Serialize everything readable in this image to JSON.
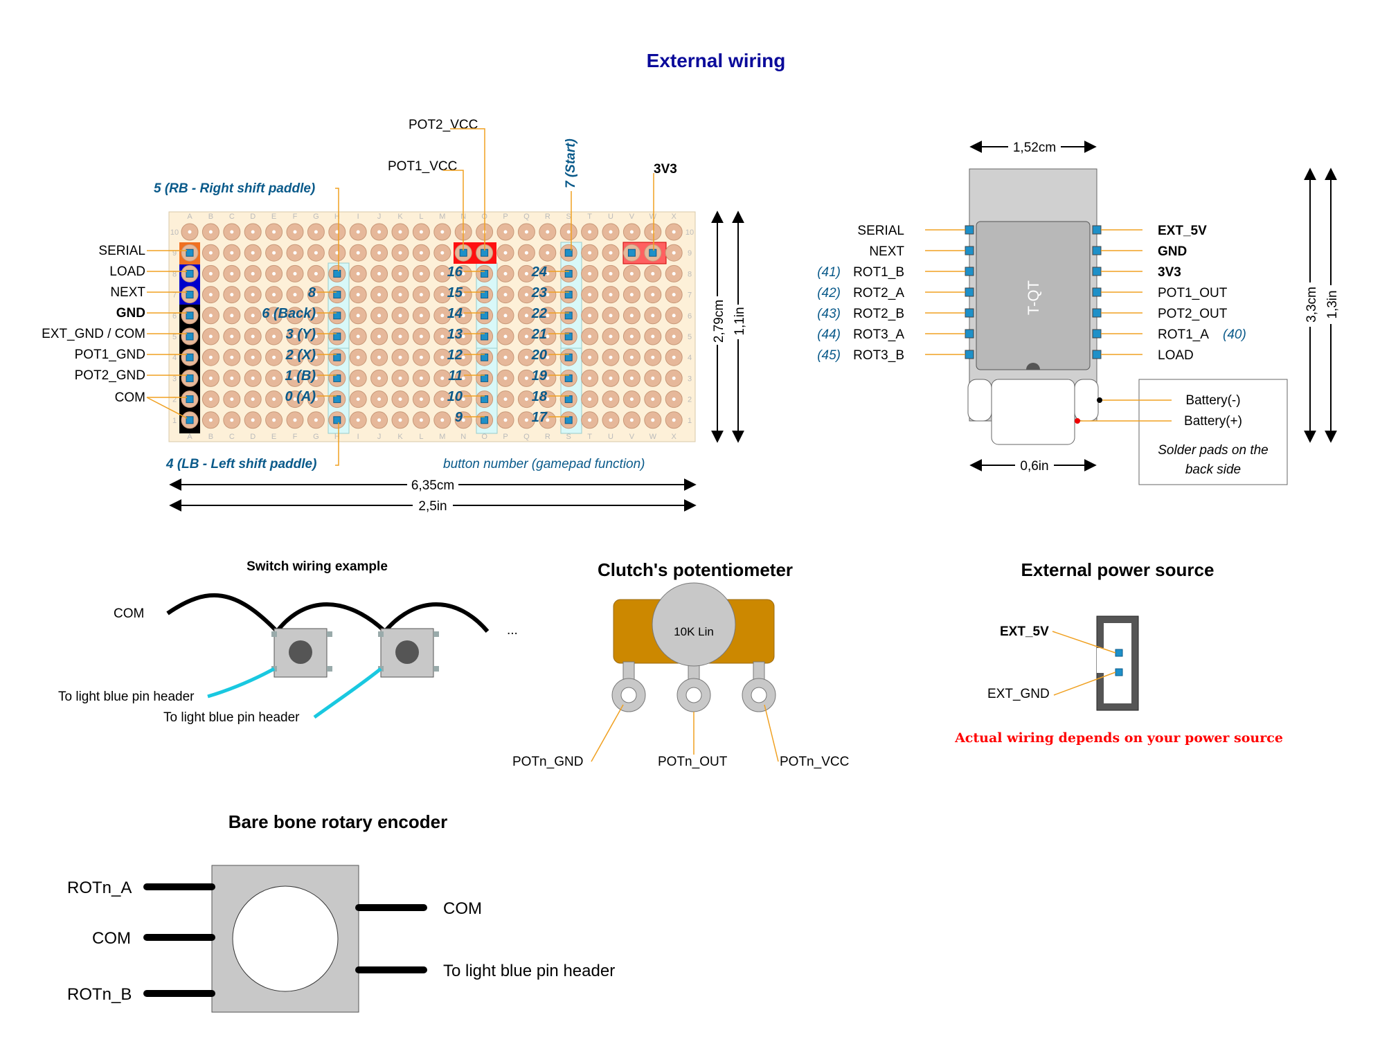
{
  "title": "External wiring",
  "title_color": "#0a0a9a",
  "board": {
    "top_labels": {
      "pot2_vcc": "POT2_VCC",
      "pot1_vcc": "POT1_VCC",
      "start": "7 (Start)",
      "v33": "3V3",
      "rb": "5 (RB - Right shift paddle)",
      "lb": "4 (LB - Left shift paddle)",
      "legend": "button number (gamepad function)"
    },
    "left_labels": [
      "SERIAL",
      "LOAD",
      "NEXT",
      "GND",
      "EXT_GND / COM",
      "POT1_GND",
      "POT2_GND",
      "COM"
    ],
    "col1_buttons": [
      "8",
      "6 (Back)",
      "3 (Y)",
      "2 (X)",
      "1 (B)",
      "0 (A)"
    ],
    "col2_buttons": [
      "16",
      "15",
      "14",
      "13",
      "12",
      "11",
      "10",
      "9"
    ],
    "col3_buttons": [
      "24",
      "23",
      "22",
      "21",
      "20",
      "19",
      "18",
      "17"
    ],
    "column_letters": [
      "A",
      "B",
      "C",
      "D",
      "E",
      "F",
      "G",
      "H",
      "I",
      "J",
      "K",
      "L",
      "M",
      "N",
      "O",
      "P",
      "Q",
      "R",
      "S",
      "T",
      "U",
      "V",
      "W",
      "X"
    ],
    "row_numbers": [
      "10",
      "9",
      "8",
      "7",
      "6",
      "5",
      "4",
      "3",
      "2",
      "1"
    ],
    "dim_width_cm": "6,35cm",
    "dim_width_in": "2,5in",
    "dim_height_cm": "2,79cm",
    "dim_height_in": "1,1in",
    "colors": {
      "board": "#fdf0d8",
      "pad": "#e6b89a",
      "orange": "#f07020",
      "blue": "#0000cc",
      "black": "#000000",
      "red": "#ff1010",
      "header": "#d8f8f8",
      "pin": "#1e90c8"
    }
  },
  "tqt": {
    "chip_label": "T-QT",
    "left_pins": [
      "SERIAL",
      "NEXT",
      "ROT1_B",
      "ROT2_A",
      "ROT2_B",
      "ROT3_A",
      "ROT3_B"
    ],
    "left_nums": [
      "",
      "",
      "(41)",
      "(42)",
      "(43)",
      "(44)",
      "(45)"
    ],
    "right_pins": [
      "EXT_5V",
      "GND",
      "3V3",
      "POT1_OUT",
      "POT2_OUT",
      "ROT1_A",
      "LOAD"
    ],
    "right_num": "(40)",
    "battery_minus": "Battery(-)",
    "battery_plus": "Battery(+)",
    "note": "Solder pads on the back side",
    "dim_width": "1,52cm",
    "dim_conn": "0,6in",
    "dim_h_cm": "3,3cm",
    "dim_h_in": "1,3in"
  },
  "switch": {
    "title": "Switch wiring example",
    "com": "COM",
    "pin1": "To light blue pin header",
    "pin2": "To light blue pin header",
    "ellipsis": "..."
  },
  "pot": {
    "title": "Clutch's potentiometer",
    "knob": "10K Lin",
    "gnd": "POTn_GND",
    "out": "POTn_OUT",
    "vcc": "POTn_VCC",
    "color": "#cc8800"
  },
  "power": {
    "title": "External power source",
    "ext5v": "EXT_5V",
    "extgnd": "EXT_GND",
    "warning": "Actual wiring depends on your power source",
    "warning_color": "#ff0000"
  },
  "encoder": {
    "title": "Bare bone rotary encoder",
    "rot_a": "ROTn_A",
    "com_left": "COM",
    "rot_b": "ROTn_B",
    "com_right": "COM",
    "pin": "To light blue pin header"
  }
}
